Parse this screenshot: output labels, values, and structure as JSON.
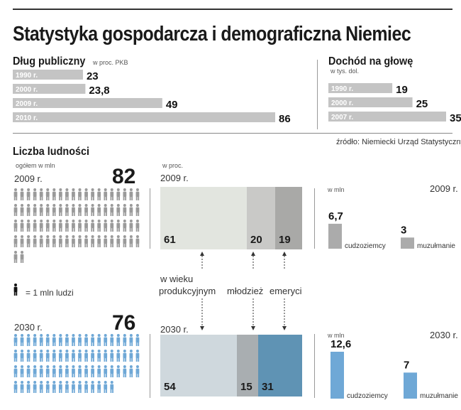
{
  "title": "Statystyka gospodarcza i demograficzna Niemiec",
  "source": "źródło: Niemiecki Urząd Statystyczny",
  "colors": {
    "gray_bar": "#c4c4c4",
    "blue": "#6fa8d6",
    "dark_blue": "#4d87b0"
  },
  "chart_data": [
    {
      "type": "bar",
      "title": "Dług publiczny",
      "subtitle": "w proc. PKB",
      "categories": [
        "1990 r.",
        "2000 r.",
        "2009 r.",
        "2010 r."
      ],
      "values": [
        23,
        23.8,
        49,
        86
      ],
      "value_labels": [
        "23",
        "23,8",
        "49",
        "86"
      ],
      "xlim": [
        0,
        86
      ]
    },
    {
      "type": "bar",
      "title": "Dochód na głowę",
      "subtitle": "w tys. dol.",
      "categories": [
        "1990 r.",
        "2000 r.",
        "2007 r."
      ],
      "values": [
        19,
        25,
        35
      ],
      "value_labels": [
        "19",
        "25",
        "35"
      ],
      "xlim": [
        0,
        35
      ]
    },
    {
      "type": "pictogram",
      "title": "Liczba ludności",
      "subtitle": "ogółem w mln",
      "legend": "= 1 mln ludzi",
      "series": [
        {
          "name": "2009 r.",
          "value": 82,
          "label": "82"
        },
        {
          "name": "2030 r.",
          "value": 76,
          "label": "76"
        }
      ]
    },
    {
      "type": "bar",
      "subtitle": "w proc.",
      "stacked": true,
      "categories": [
        "2009 r.",
        "2030 r."
      ],
      "series": [
        {
          "name": "w wieku produkcyjnym",
          "label_lines": [
            "w wieku",
            "produkcyjnym"
          ],
          "values": [
            61,
            54
          ],
          "value_labels": [
            "61",
            "54"
          ]
        },
        {
          "name": "młodzież",
          "label_lines": [
            "młodzież"
          ],
          "values": [
            20,
            15
          ],
          "value_labels": [
            "20",
            "15"
          ]
        },
        {
          "name": "emeryci",
          "label_lines": [
            "emeryci"
          ],
          "values": [
            19,
            31
          ],
          "value_labels": [
            "19",
            "31"
          ]
        }
      ]
    },
    {
      "type": "bar",
      "subtitle": "w mln",
      "year": "2009 r.",
      "categories": [
        "cudzoziemcy",
        "muzułmanie"
      ],
      "values": [
        6.7,
        3
      ],
      "value_labels": [
        "6,7",
        "3"
      ],
      "ylim": [
        0,
        12.6
      ]
    },
    {
      "type": "bar",
      "subtitle": "w mln",
      "year": "2030 r.",
      "categories": [
        "cudzoziemcy",
        "muzułmanie"
      ],
      "values": [
        12.6,
        7
      ],
      "value_labels": [
        "12,6",
        "7"
      ],
      "ylim": [
        0,
        12.6
      ]
    }
  ]
}
